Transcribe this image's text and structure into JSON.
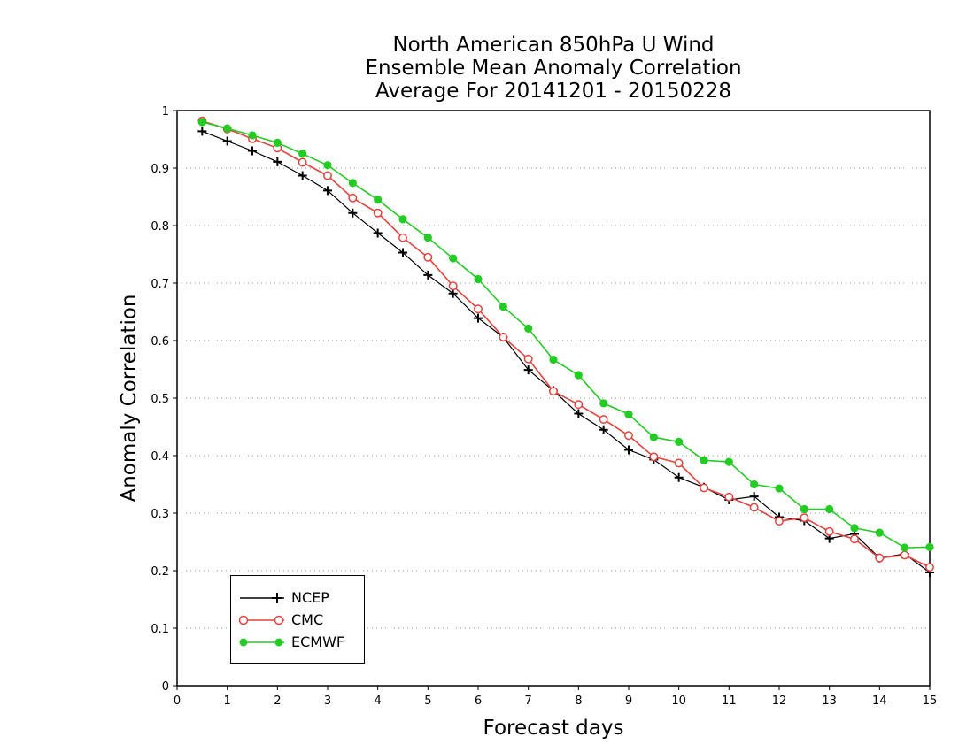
{
  "chart_data": {
    "type": "line",
    "title_lines": [
      "North American 850hPa U Wind",
      "Ensemble Mean Anomaly Correlation",
      "Average For 20141201 - 20150228"
    ],
    "xlabel": "Forecast days",
    "ylabel": "Anomaly Correlation",
    "xlim": [
      0,
      15
    ],
    "ylim": [
      0,
      1
    ],
    "xticks": [
      "0",
      "1",
      "2",
      "3",
      "4",
      "5",
      "6",
      "7",
      "8",
      "9",
      "10",
      "11",
      "12",
      "13",
      "14",
      "15"
    ],
    "yticks": [
      "0",
      "0.1",
      "0.2",
      "0.3",
      "0.4",
      "0.5",
      "0.6",
      "0.7",
      "0.8",
      "0.9",
      "1"
    ],
    "grid": "horizontal dotted",
    "legend_position": "bottom-left",
    "x": [
      0.5,
      1,
      1.5,
      2,
      2.5,
      3,
      3.5,
      4,
      4.5,
      5,
      5.5,
      6,
      6.5,
      7,
      7.5,
      8,
      8.5,
      9,
      9.5,
      10,
      10.5,
      11,
      11.5,
      12,
      12.5,
      13,
      13.5,
      14,
      14.5,
      15
    ],
    "series": [
      {
        "name": "NCEP",
        "color": "#000000",
        "marker": "plus",
        "values": [
          0.964,
          0.947,
          0.93,
          0.911,
          0.887,
          0.861,
          0.822,
          0.787,
          0.753,
          0.714,
          0.682,
          0.639,
          0.606,
          0.549,
          0.513,
          0.473,
          0.445,
          0.41,
          0.393,
          0.362,
          0.345,
          0.323,
          0.329,
          0.293,
          0.287,
          0.256,
          0.264,
          0.222,
          0.229,
          0.197
        ]
      },
      {
        "name": "CMC",
        "color": "#e8403a",
        "marker": "open-circle",
        "values": [
          0.982,
          0.968,
          0.951,
          0.935,
          0.91,
          0.887,
          0.848,
          0.822,
          0.779,
          0.745,
          0.695,
          0.655,
          0.606,
          0.568,
          0.512,
          0.489,
          0.463,
          0.435,
          0.398,
          0.387,
          0.344,
          0.328,
          0.31,
          0.286,
          0.292,
          0.268,
          0.255,
          0.222,
          0.227,
          0.206
        ]
      },
      {
        "name": "ECMWF",
        "color": "#22cc22",
        "marker": "filled-circle",
        "values": [
          0.98,
          0.969,
          0.957,
          0.944,
          0.925,
          0.905,
          0.874,
          0.845,
          0.811,
          0.779,
          0.743,
          0.707,
          0.659,
          0.621,
          0.567,
          0.54,
          0.491,
          0.472,
          0.432,
          0.424,
          0.392,
          0.389,
          0.35,
          0.343,
          0.307,
          0.307,
          0.274,
          0.266,
          0.24,
          0.241
        ]
      }
    ]
  }
}
